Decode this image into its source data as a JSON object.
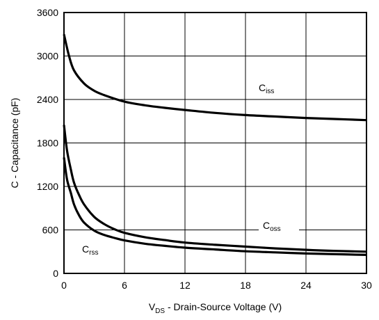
{
  "chart_data": {
    "type": "line",
    "title": "",
    "xlabel": {
      "main": "V",
      "sub": "DS",
      "rest": " - Drain-Source Voltage (V)"
    },
    "ylabel": "C - Capacitance (pF)",
    "xlim": [
      0,
      30
    ],
    "ylim": [
      0,
      3600
    ],
    "xticks": [
      0,
      6,
      12,
      18,
      24,
      30
    ],
    "yticks": [
      0,
      600,
      1200,
      1800,
      2400,
      3000,
      3600
    ],
    "grid": true,
    "legend": "inline labels",
    "series": [
      {
        "label": {
          "main": "C",
          "sub": "iss"
        },
        "color": "#000000",
        "x": [
          0,
          0.5,
          1,
          2,
          3,
          4,
          6,
          8,
          10,
          12,
          15,
          18,
          21,
          24,
          27,
          30
        ],
        "y": [
          3300,
          3000,
          2800,
          2620,
          2520,
          2460,
          2370,
          2320,
          2285,
          2255,
          2215,
          2185,
          2165,
          2145,
          2130,
          2115
        ]
      },
      {
        "label": {
          "main": "C",
          "sub": "oss"
        },
        "color": "#000000",
        "x": [
          0,
          0.3,
          0.7,
          1,
          1.5,
          2,
          3,
          4,
          5,
          6,
          8,
          10,
          12,
          15,
          18,
          21,
          24,
          27,
          30
        ],
        "y": [
          2050,
          1700,
          1420,
          1250,
          1080,
          950,
          780,
          680,
          610,
          560,
          500,
          460,
          425,
          395,
          370,
          345,
          325,
          310,
          300
        ]
      },
      {
        "label": {
          "main": "C",
          "sub": "rss"
        },
        "color": "#000000",
        "x": [
          0,
          0.3,
          0.7,
          1,
          1.5,
          2,
          3,
          4,
          5,
          6,
          8,
          10,
          12,
          15,
          18,
          21,
          24,
          27,
          30
        ],
        "y": [
          1600,
          1300,
          1100,
          950,
          800,
          700,
          590,
          530,
          490,
          455,
          410,
          380,
          355,
          330,
          305,
          290,
          275,
          265,
          255
        ]
      }
    ]
  }
}
